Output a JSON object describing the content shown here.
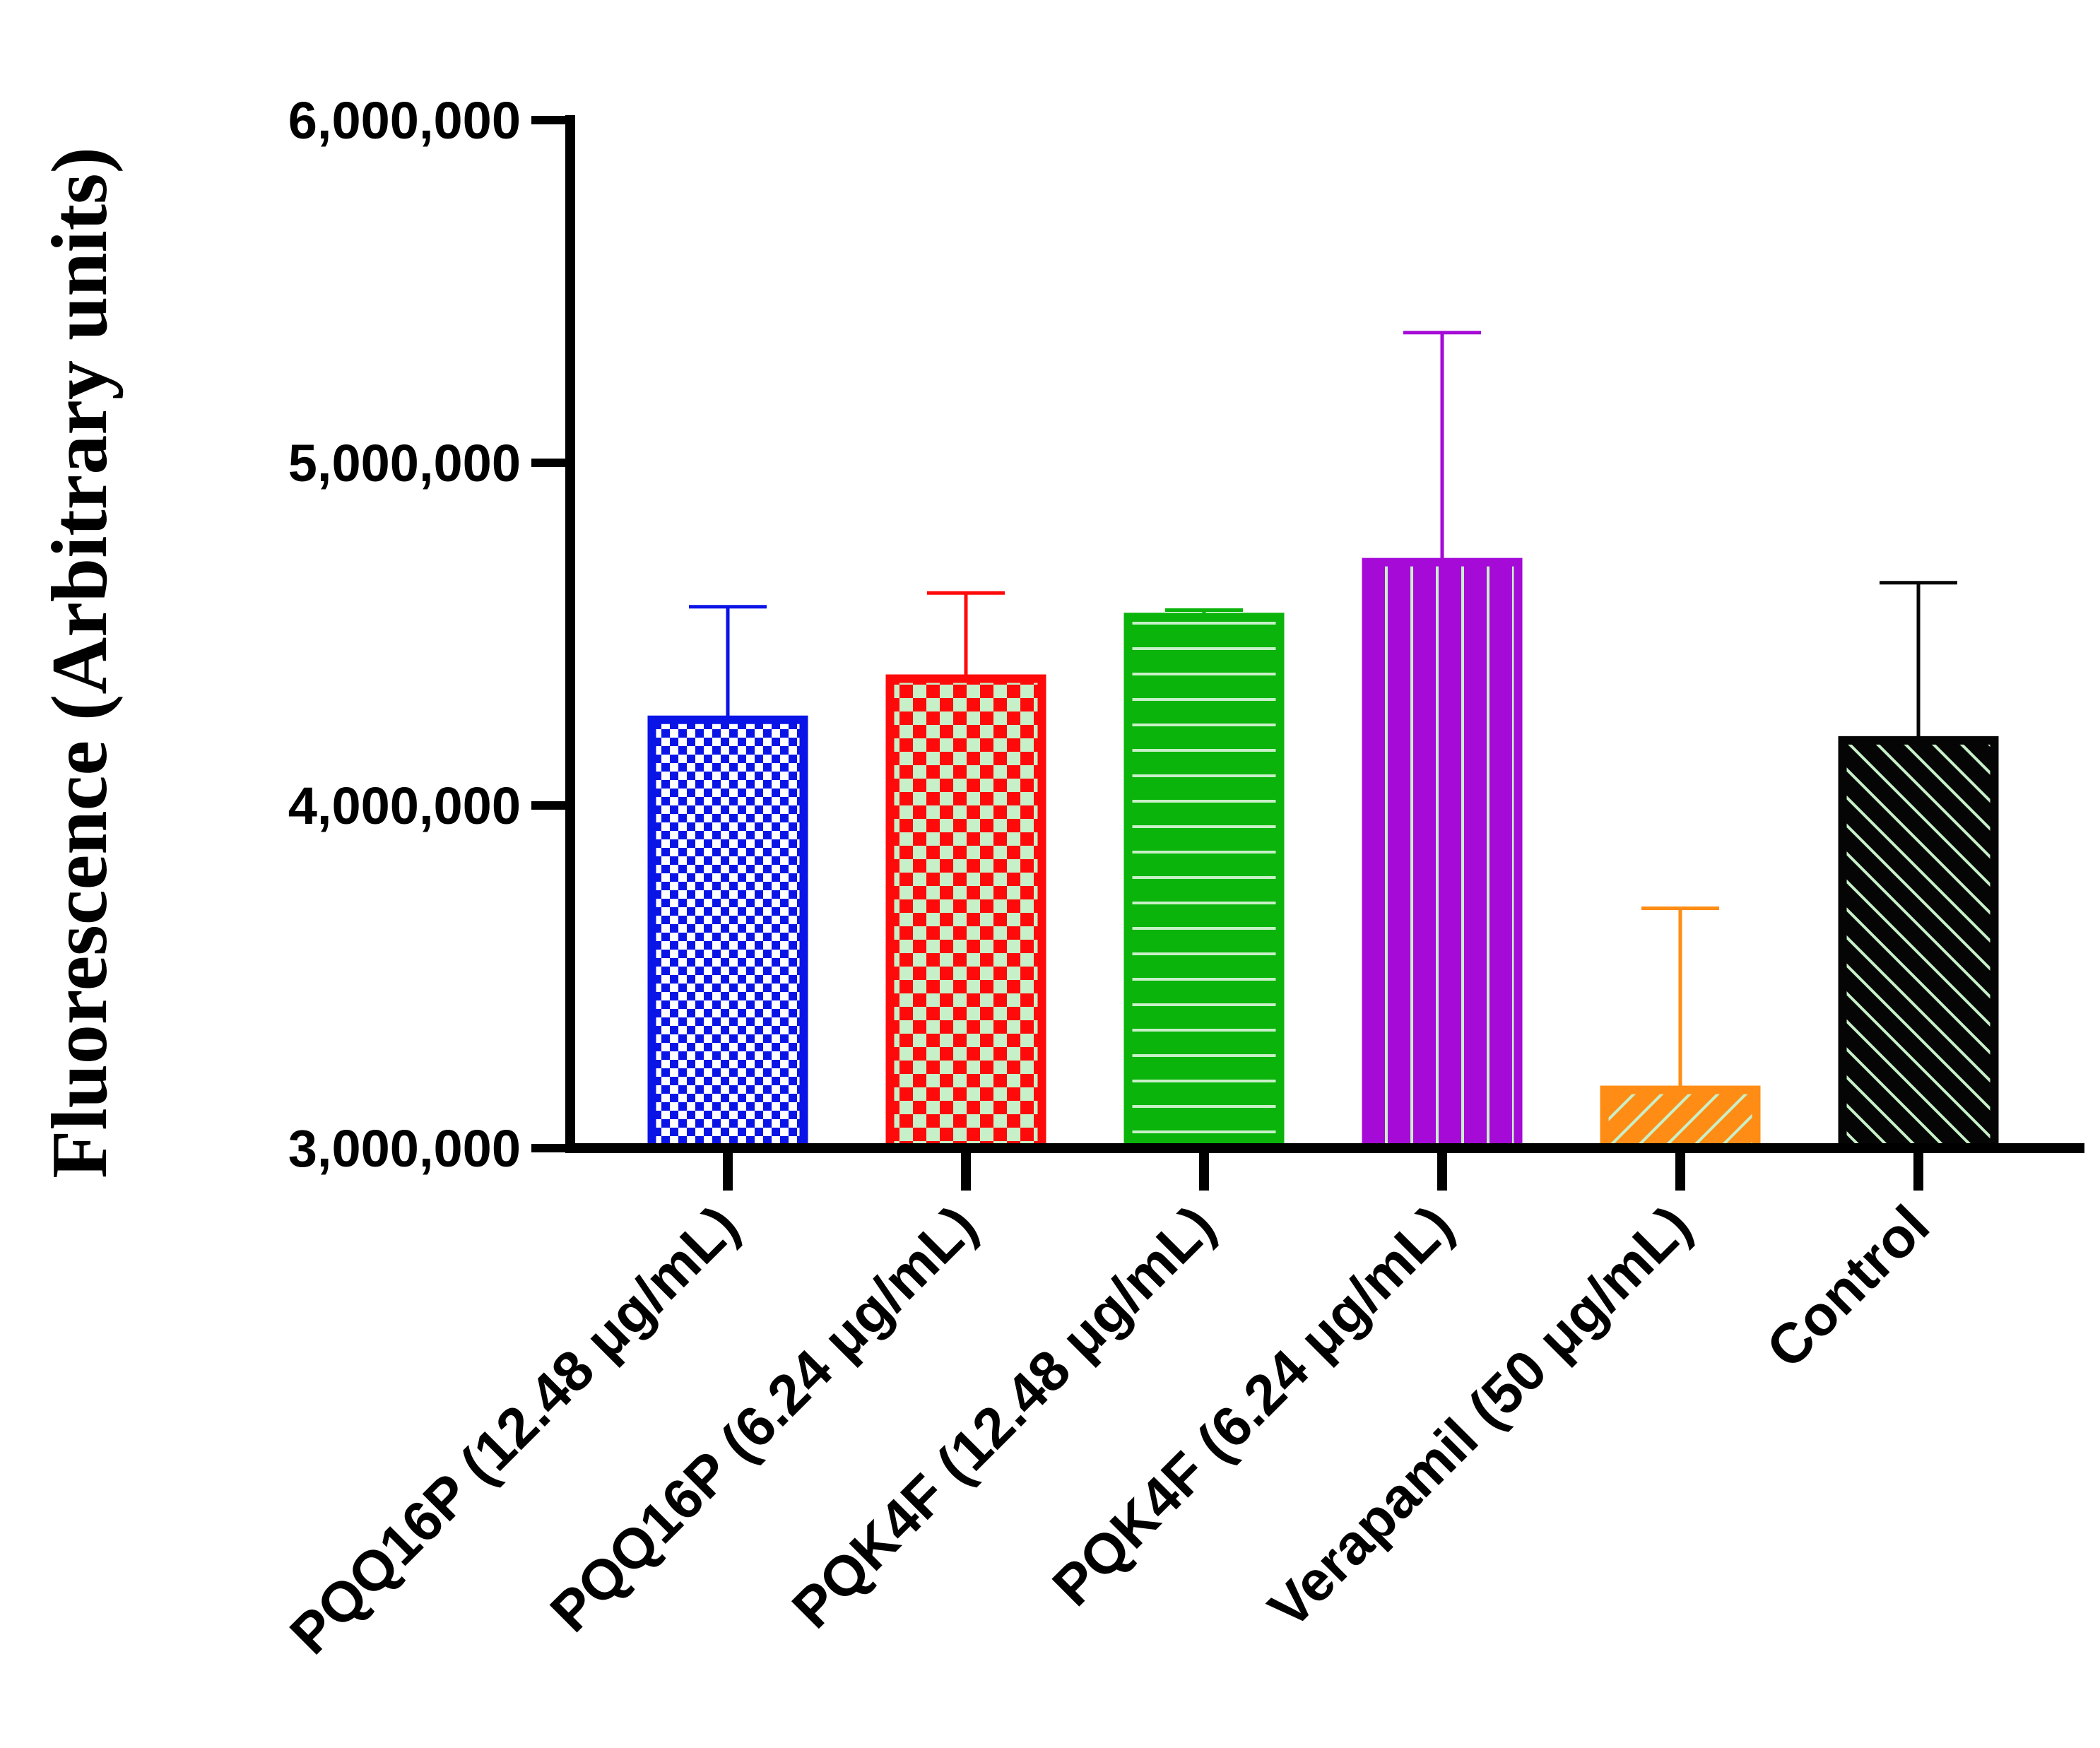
{
  "chart_data": {
    "type": "bar",
    "title": "",
    "xlabel": "",
    "ylabel": "Fluorescence (Arbitrary units)",
    "ylim": [
      3000000,
      6000000
    ],
    "yticks": [
      3000000,
      4000000,
      5000000,
      6000000
    ],
    "ytick_labels": [
      "3,000,000",
      "4,000,000",
      "5,000,000",
      "6,000,000"
    ],
    "grid": false,
    "legend": "none",
    "categories": [
      "PQQ16P (12.48 μg/mL)",
      "PQQ16P (6.24 μg/mL)",
      "PQK4F (12.48 μg/mL)",
      "PQK4F (6.24 μg/mL)",
      "Verapamil (50 μg/mL)",
      "Control"
    ],
    "values": [
      4250000,
      4370000,
      4550000,
      4710000,
      3170000,
      4190000
    ],
    "error_upper": [
      330000,
      250000,
      20000,
      670000,
      530000,
      460000
    ],
    "colors": [
      "#0a14e6",
      "#ff0a0a",
      "#0ab40a",
      "#a50ad7",
      "#ff8c14",
      "#050505"
    ],
    "patterns": [
      "checker-fine",
      "checker-coarse",
      "horizontal-lines",
      "vertical-lines",
      "diagonal-up",
      "diagonal-down"
    ]
  }
}
